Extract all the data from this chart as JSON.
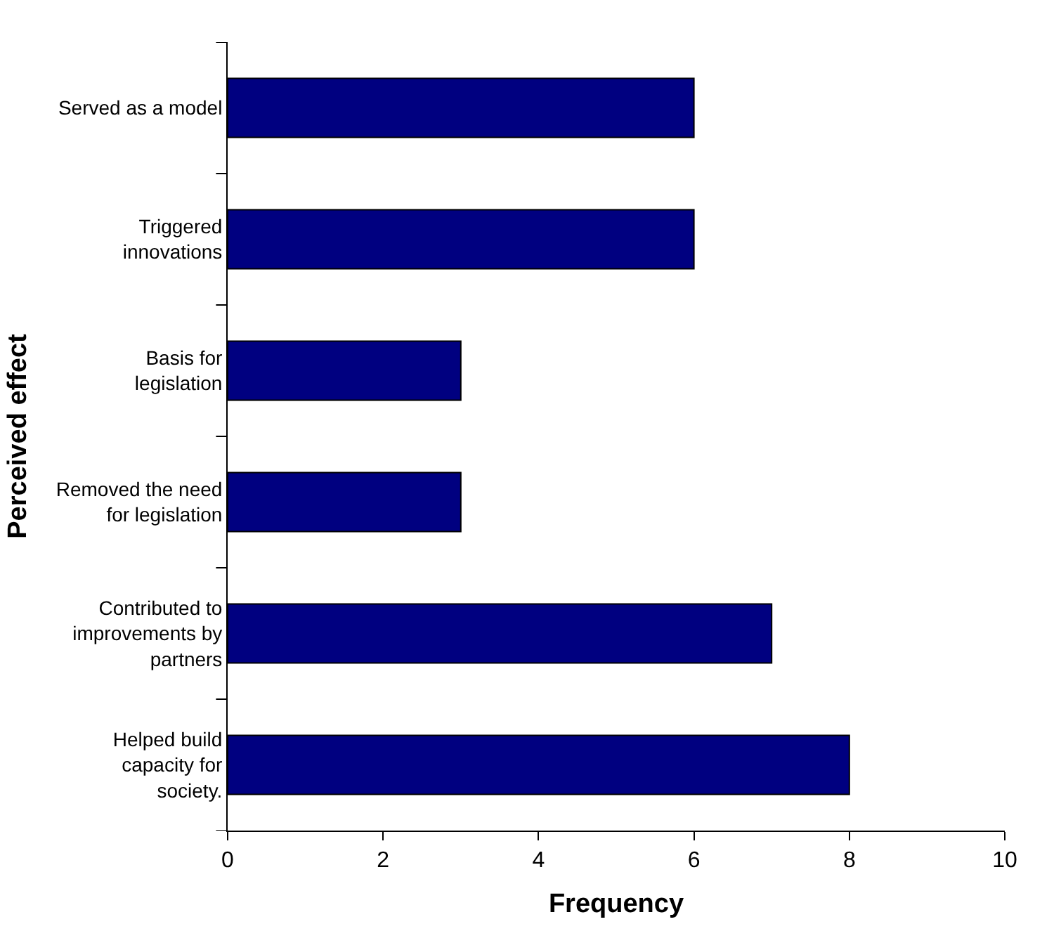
{
  "chart_data": {
    "type": "bar",
    "orientation": "horizontal",
    "xlabel": "Frequency",
    "ylabel": "Perceived effect",
    "categories": [
      "Served as a model",
      "Triggered innovations",
      "Basis for legislation",
      "Removed the need for legislation",
      "Contributed to improvements by partners",
      "Helped build capacity for society."
    ],
    "values": [
      6,
      6,
      3,
      3,
      7,
      8
    ],
    "color": "#000080",
    "xlim": [
      0,
      10
    ],
    "xticks": [
      0,
      2,
      4,
      6,
      8,
      10
    ],
    "grid": false
  }
}
